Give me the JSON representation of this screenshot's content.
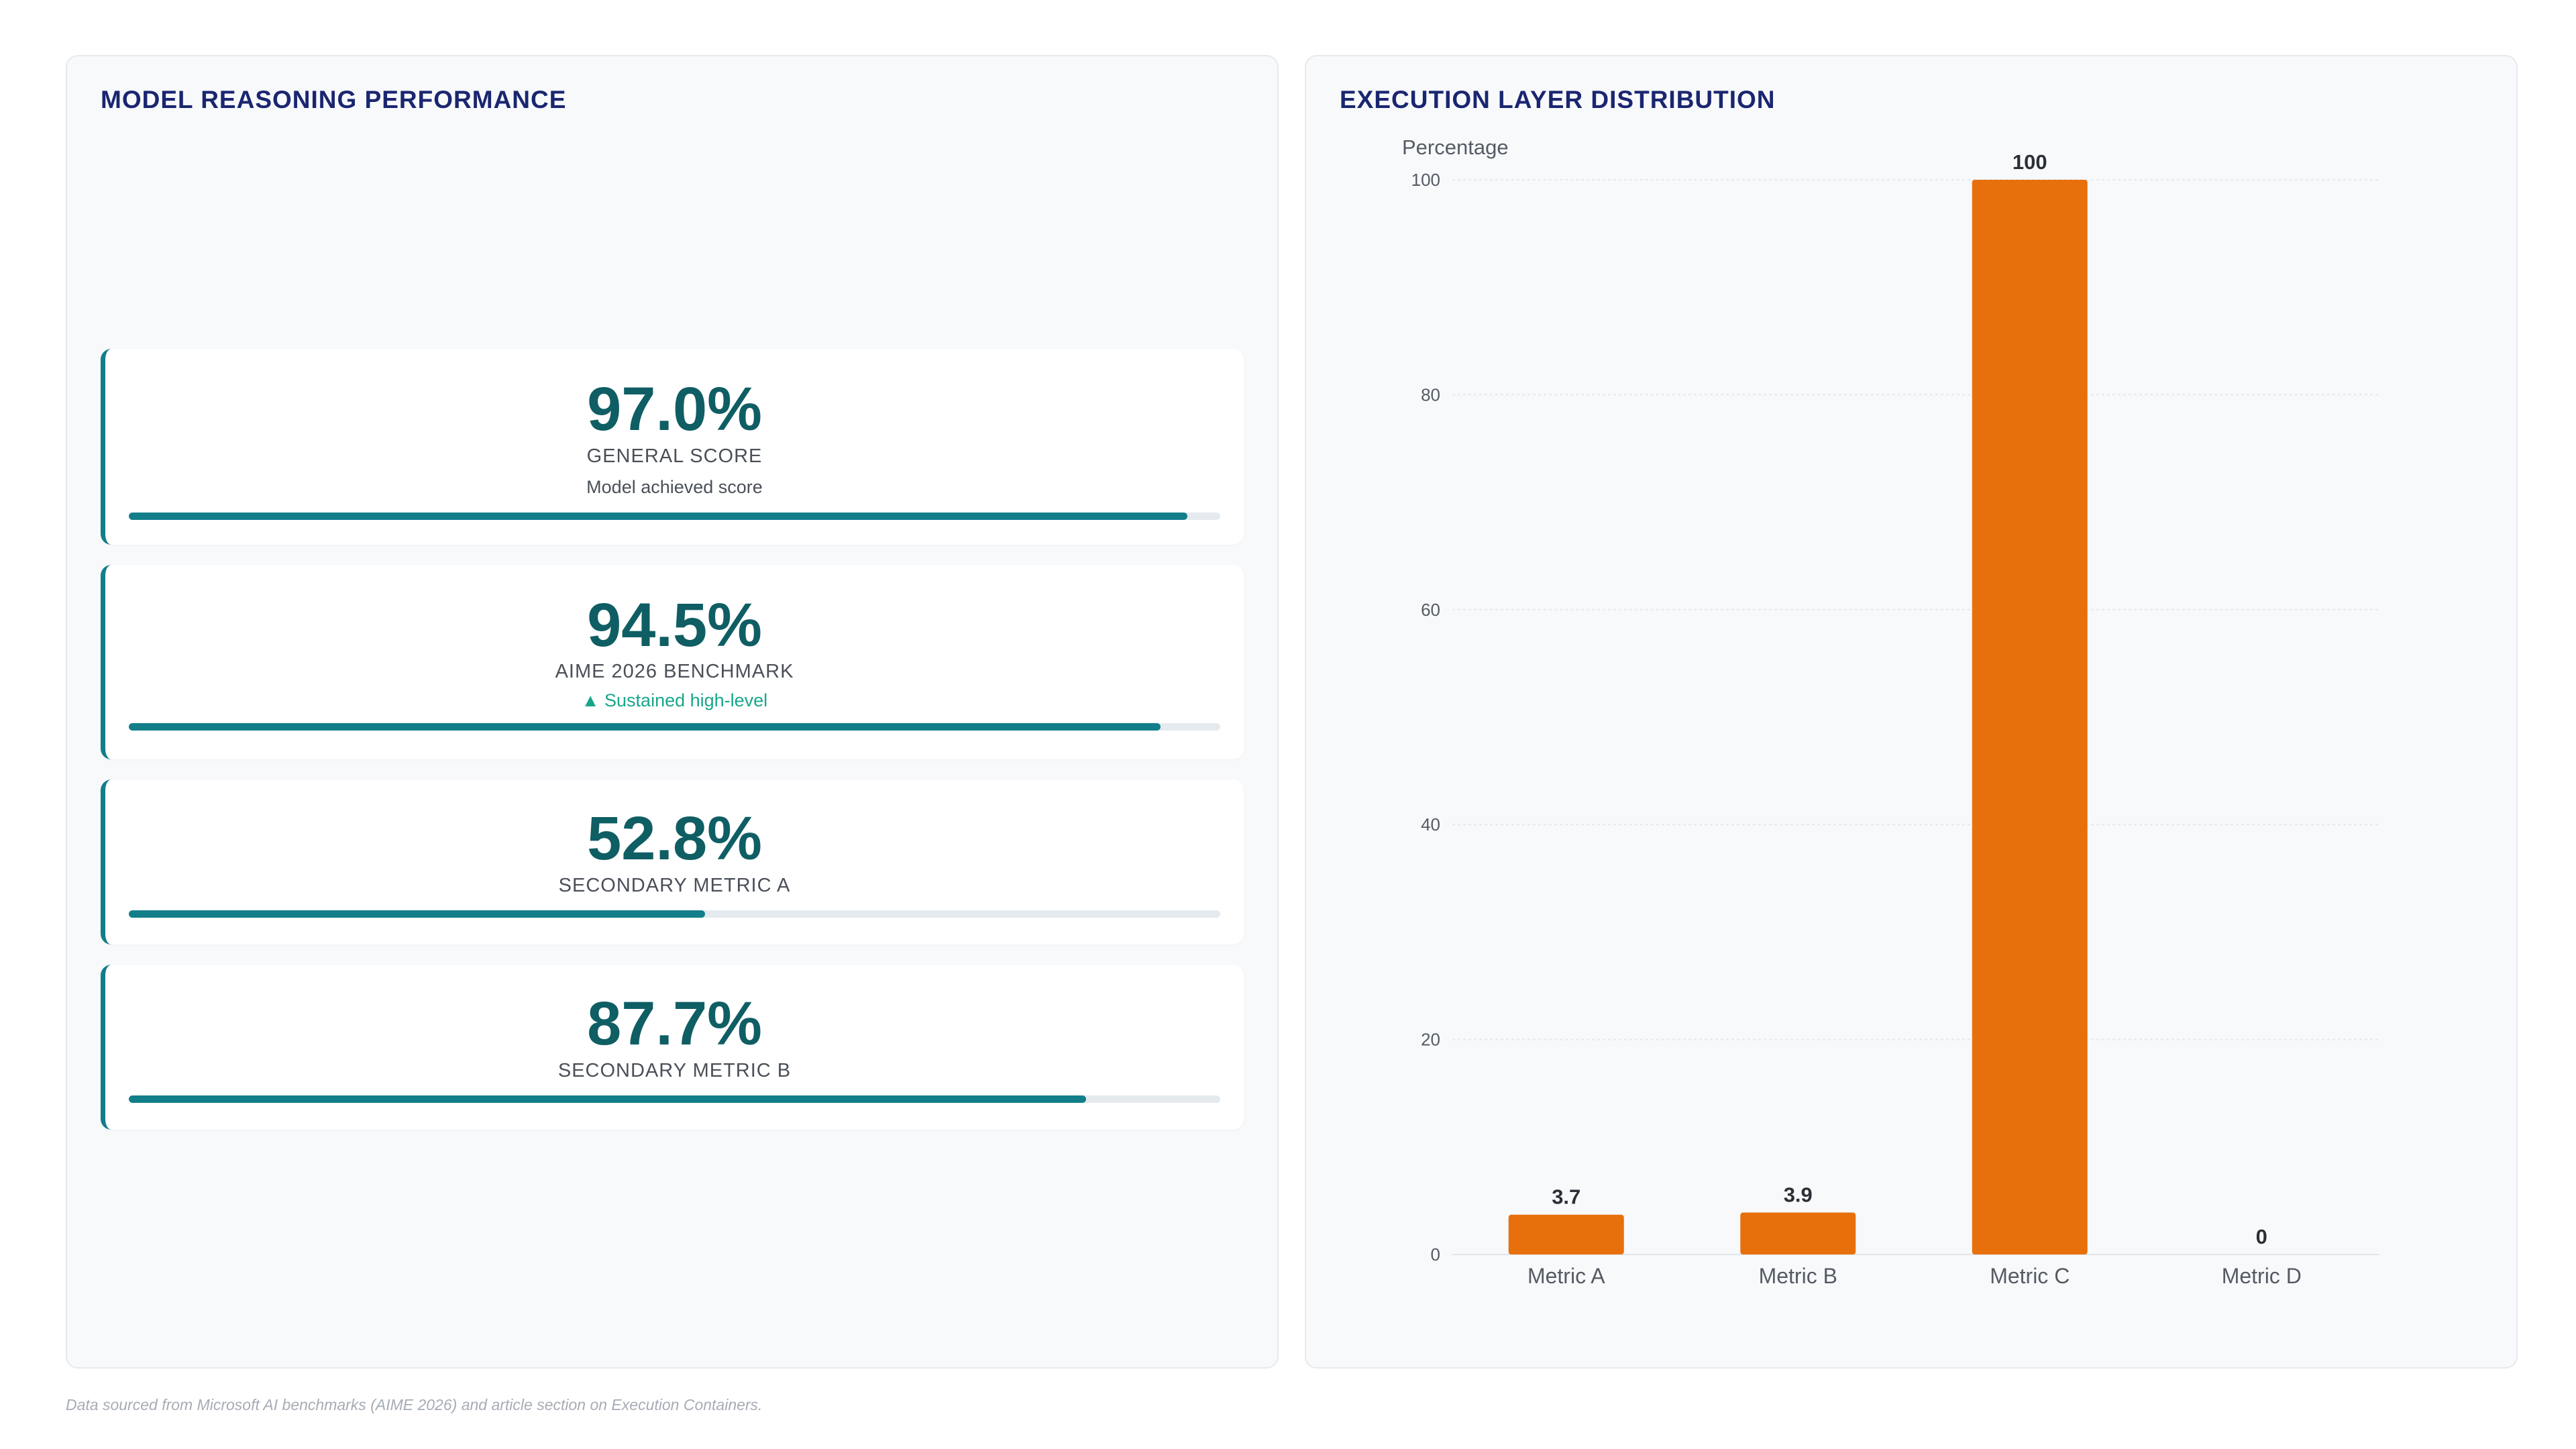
{
  "left_panel": {
    "title": "MODEL REASONING PERFORMANCE",
    "metrics": [
      {
        "value": "97.0%",
        "label": "GENERAL SCORE",
        "sub": "Model achieved score",
        "progress": 0.97
      },
      {
        "value": "94.5%",
        "label": "AIME 2026 BENCHMARK",
        "sub": "▲ Sustained high-level",
        "progress": 0.945
      },
      {
        "value": "52.8%",
        "label": "SECONDARY METRIC A",
        "progress": 0.528
      },
      {
        "value": "87.7%",
        "label": "SECONDARY METRIC B",
        "progress": 0.877
      }
    ]
  },
  "right_panel": {
    "title": "EXECUTION LAYER DISTRIBUTION"
  },
  "chart_data": {
    "type": "bar",
    "categories": [
      "Metric A",
      "Metric B",
      "Metric C",
      "Metric D"
    ],
    "values": [
      3.7,
      3.9,
      100,
      0
    ],
    "data_labels": [
      "3.7",
      "3.9",
      "100",
      "0"
    ],
    "ylabel": "Percentage",
    "xlabel": "",
    "ylim": [
      0,
      100
    ],
    "yticks": [
      0,
      20,
      40,
      60,
      80,
      100
    ],
    "grid": true,
    "legend": "none",
    "bar_color": "#e8700c"
  },
  "footnote": "Data sourced from Microsoft AI benchmarks (AIME 2026) and article section on Execution Containers.",
  "colors": {
    "title": "#1a2670",
    "accent": "#127e8a",
    "metric_value": "#0f5e64",
    "positive": "#18a68a",
    "bar": "#e8700c"
  }
}
